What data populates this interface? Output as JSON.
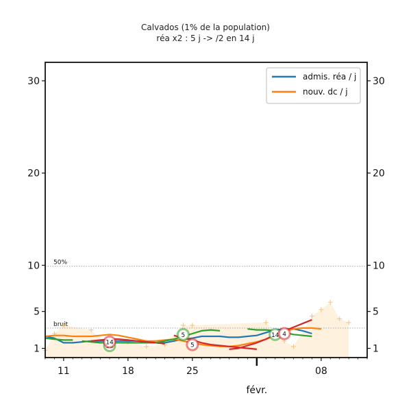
{
  "chart_data": {
    "type": "line",
    "title": "Calvados (1% de la population)",
    "subtitle": "réa x2 : 5 j -> /2 en 14 j",
    "x_tick_labels": [
      "11",
      "18",
      "25",
      "08"
    ],
    "x_month_label": "févr.",
    "x_range": [
      "2021-01-09",
      "2021-02-13"
    ],
    "y_ticks": [
      1,
      5,
      10,
      20,
      30
    ],
    "ylim": [
      0,
      32
    ],
    "grid": false,
    "reference_lines": [
      {
        "label": "50%",
        "value": 9.9
      },
      {
        "label": "bruit",
        "value": 3.2
      }
    ],
    "legend": {
      "position": "top-right",
      "entries": [
        "admis. réa / j",
        "nouv. dc / j"
      ]
    },
    "colors": {
      "rea": "#1f77b4",
      "dc": "#ff7f0e",
      "up": "#2ca02c",
      "down": "#d62728",
      "area": "#fde8c8"
    },
    "series": [
      {
        "name": "admis. réa / j",
        "color": "#1f77b4",
        "x": [
          "2021-01-09",
          "2021-01-10",
          "2021-01-11",
          "2021-01-12",
          "2021-01-13",
          "2021-01-14",
          "2021-01-15",
          "2021-01-16",
          "2021-01-17",
          "2021-01-18",
          "2021-01-19",
          "2021-01-20",
          "2021-01-21",
          "2021-01-22",
          "2021-01-23",
          "2021-01-24",
          "2021-01-25",
          "2021-01-26",
          "2021-01-27",
          "2021-01-28",
          "2021-01-29",
          "2021-01-30",
          "2021-01-31",
          "2021-02-01",
          "2021-02-02",
          "2021-02-03",
          "2021-02-04",
          "2021-02-05",
          "2021-02-06",
          "2021-02-07"
        ],
        "values": [
          2.3,
          2.1,
          1.6,
          1.6,
          1.7,
          1.8,
          1.8,
          1.8,
          1.8,
          1.8,
          1.8,
          1.8,
          1.6,
          1.6,
          1.8,
          2.0,
          2.1,
          2.3,
          2.3,
          2.3,
          2.2,
          2.2,
          2.3,
          2.4,
          2.7,
          3.0,
          3.1,
          3.1,
          2.9,
          2.6
        ]
      },
      {
        "name": "nouv. dc / j",
        "color": "#ff7f0e",
        "x": [
          "2021-01-09",
          "2021-01-10",
          "2021-01-11",
          "2021-01-12",
          "2021-01-13",
          "2021-01-14",
          "2021-01-15",
          "2021-01-16",
          "2021-01-17",
          "2021-01-18",
          "2021-01-19",
          "2021-01-20",
          "2021-01-21",
          "2021-01-22",
          "2021-01-23",
          "2021-01-24",
          "2021-01-25",
          "2021-01-26",
          "2021-01-27",
          "2021-01-28",
          "2021-01-29",
          "2021-01-30",
          "2021-01-31",
          "2021-02-01",
          "2021-02-02",
          "2021-02-03",
          "2021-02-04",
          "2021-02-05",
          "2021-02-06",
          "2021-02-07",
          "2021-02-08"
        ],
        "values": [
          2.3,
          2.4,
          2.4,
          2.3,
          2.3,
          2.3,
          2.4,
          2.5,
          2.4,
          2.2,
          2.0,
          1.8,
          1.8,
          1.9,
          2.0,
          1.8,
          1.6,
          1.4,
          1.3,
          1.2,
          1.2,
          1.3,
          1.5,
          1.7,
          2.0,
          2.4,
          2.8,
          3.1,
          3.2,
          3.2,
          3.1
        ]
      }
    ],
    "trend_segments": [
      {
        "color": "#2ca02c",
        "x": [
          "2021-01-09",
          "2021-01-10",
          "2021-01-11",
          "2021-01-12"
        ],
        "values": [
          2.1,
          2.0,
          1.9,
          1.9
        ]
      },
      {
        "color": "#2ca02c",
        "x": [
          "2021-01-13",
          "2021-01-14",
          "2021-01-15",
          "2021-01-16",
          "2021-01-17",
          "2021-01-18",
          "2021-01-19",
          "2021-01-20",
          "2021-01-21"
        ],
        "values": [
          1.8,
          1.7,
          1.6,
          1.6,
          1.6,
          1.6,
          1.6,
          1.6,
          1.6
        ]
      },
      {
        "color": "#d62728",
        "x": [
          "2021-01-14",
          "2021-01-15",
          "2021-01-16",
          "2021-01-17",
          "2021-01-18",
          "2021-01-19",
          "2021-01-20",
          "2021-01-21",
          "2021-01-22"
        ],
        "values": [
          1.8,
          1.9,
          2.0,
          2.0,
          1.9,
          1.8,
          1.7,
          1.6,
          1.5
        ]
      },
      {
        "color": "#2ca02c",
        "x": [
          "2021-01-21",
          "2021-01-22",
          "2021-01-23",
          "2021-01-24",
          "2021-01-25",
          "2021-01-26",
          "2021-01-27",
          "2021-01-28"
        ],
        "values": [
          1.6,
          1.8,
          2.0,
          2.3,
          2.6,
          2.9,
          3.0,
          2.9
        ]
      },
      {
        "color": "#d62728",
        "x": [
          "2021-01-23",
          "2021-01-24",
          "2021-01-25",
          "2021-01-26",
          "2021-01-27",
          "2021-01-28",
          "2021-01-29",
          "2021-01-30",
          "2021-01-31",
          "2021-02-01"
        ],
        "values": [
          2.4,
          2.1,
          1.9,
          1.6,
          1.4,
          1.3,
          1.2,
          1.1,
          1.0,
          0.9
        ]
      },
      {
        "color": "#2ca02c",
        "x": [
          "2021-01-31",
          "2021-02-01",
          "2021-02-02",
          "2021-02-03",
          "2021-02-04",
          "2021-02-05",
          "2021-02-06",
          "2021-02-07"
        ],
        "values": [
          3.1,
          3.0,
          3.0,
          2.9,
          2.7,
          2.5,
          2.4,
          2.3
        ]
      },
      {
        "color": "#d62728",
        "x": [
          "2021-01-29",
          "2021-01-30",
          "2021-01-31",
          "2021-02-01",
          "2021-02-02",
          "2021-02-03",
          "2021-02-04",
          "2021-02-05",
          "2021-02-06",
          "2021-02-07"
        ],
        "values": [
          0.9,
          1.0,
          1.3,
          1.6,
          2.0,
          2.5,
          2.9,
          3.3,
          3.7,
          4.1
        ]
      }
    ],
    "markers": [
      {
        "label": "13",
        "x": "2021-01-16",
        "value": 1.3,
        "color": "#2ca02c"
      },
      {
        "label": "14",
        "x": "2021-01-16",
        "value": 1.7,
        "color": "#d62728"
      },
      {
        "label": "5",
        "x": "2021-01-24",
        "value": 2.5,
        "color": "#2ca02c"
      },
      {
        "label": "5",
        "x": "2021-01-25",
        "value": 1.4,
        "color": "#d62728"
      },
      {
        "label": "14",
        "x": "2021-02-03",
        "value": 2.5,
        "color": "#2ca02c"
      },
      {
        "label": "4",
        "x": "2021-02-04",
        "value": 2.6,
        "color": "#d62728"
      }
    ],
    "raw_points": [
      {
        "x": "2021-01-09",
        "value": 0.8
      },
      {
        "x": "2021-01-10",
        "value": 2.6
      },
      {
        "x": "2021-01-11",
        "value": 3.5
      },
      {
        "x": "2021-01-14",
        "value": 3.0
      },
      {
        "x": "2021-01-16",
        "value": 1.0
      },
      {
        "x": "2021-01-18",
        "value": 1.7
      },
      {
        "x": "2021-01-20",
        "value": 1.2
      },
      {
        "x": "2021-01-22",
        "value": 1.4
      },
      {
        "x": "2021-01-24",
        "value": 3.5
      },
      {
        "x": "2021-01-25",
        "value": 3.5
      },
      {
        "x": "2021-02-02",
        "value": 3.8
      },
      {
        "x": "2021-02-04",
        "value": 1.8
      },
      {
        "x": "2021-02-05",
        "value": 1.2
      },
      {
        "x": "2021-02-07",
        "value": 4.5
      },
      {
        "x": "2021-02-08",
        "value": 5.2
      },
      {
        "x": "2021-02-09",
        "value": 6.0
      },
      {
        "x": "2021-02-10",
        "value": 4.2
      },
      {
        "x": "2021-02-11",
        "value": 3.8
      }
    ]
  }
}
